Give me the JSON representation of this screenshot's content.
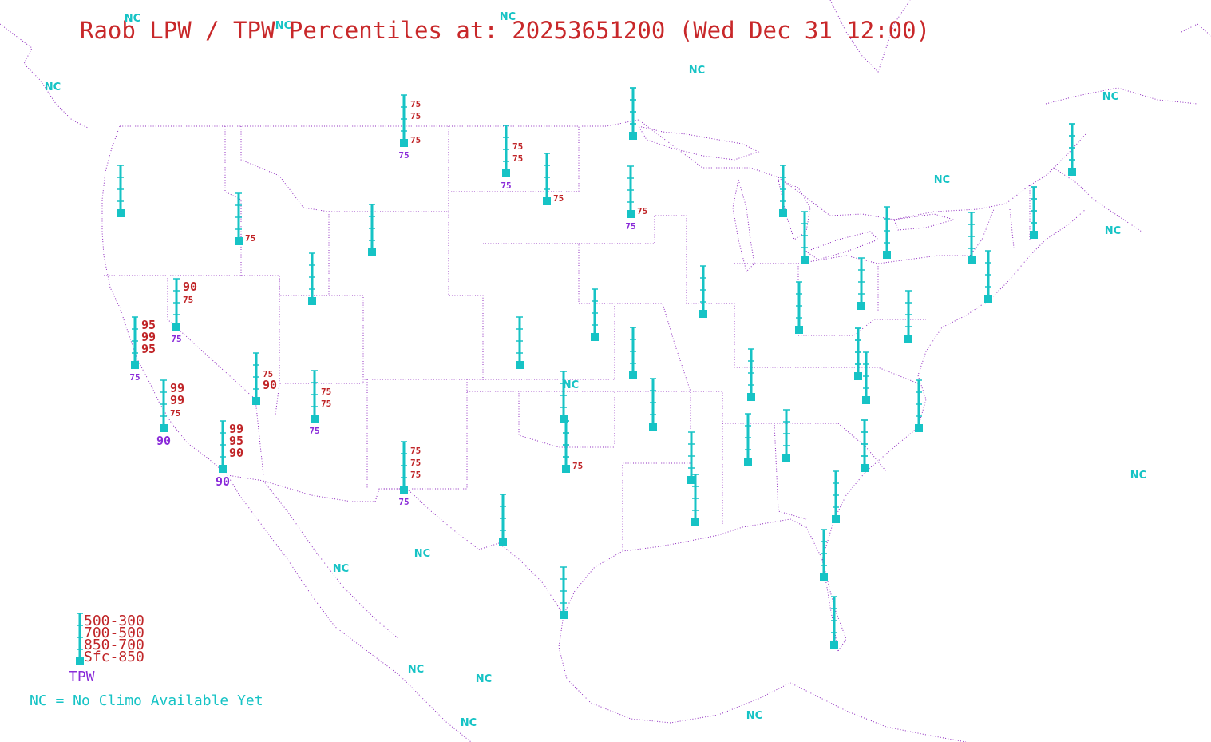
{
  "title": "Raob LPW / TPW Percentiles at: 20253651200 (Wed Dec 31 12:00)",
  "colors": {
    "station": "#16c3c5",
    "layer_label": "#c02528",
    "tpw_label": "#8a2bd9",
    "boundary": "#8f2bbf",
    "title": "#c8282a"
  },
  "legend": {
    "layers": [
      "500-300",
      "700-500",
      "850-700",
      "Sfc-850"
    ],
    "tpw": "TPW",
    "nc_note": "NC = No Climo Available Yet"
  },
  "nc_label": "NC",
  "stations": [
    {
      "labels": [
        "",
        "",
        "",
        ""
      ],
      "tpw": ""
    },
    {
      "labels": [
        "",
        "",
        "",
        "75"
      ],
      "tpw": ""
    },
    {
      "labels": [
        "75",
        "75",
        "",
        "75"
      ],
      "tpw": "75"
    },
    {
      "labels": [
        "",
        "75",
        "75",
        ""
      ],
      "tpw": "75"
    },
    {
      "labels": [
        "",
        "",
        "",
        "75"
      ],
      "tpw": ""
    },
    {
      "labels": [
        "",
        "",
        "",
        ""
      ],
      "tpw": ""
    },
    {
      "labels": [
        "",
        "",
        "",
        "75"
      ],
      "tpw": "75"
    },
    {
      "labels": [
        "",
        "",
        "",
        ""
      ],
      "tpw": ""
    },
    {
      "labels": [
        "",
        "",
        "",
        ""
      ],
      "tpw": ""
    },
    {
      "labels": [
        "",
        "",
        "",
        ""
      ],
      "tpw": ""
    },
    {
      "labels": [
        "",
        "",
        "",
        ""
      ],
      "tpw": ""
    },
    {
      "labels": [
        "",
        "",
        "",
        ""
      ],
      "tpw": ""
    },
    {
      "labels": [
        "",
        "",
        "",
        ""
      ],
      "tpw": ""
    },
    {
      "labels": [
        "",
        "",
        "",
        ""
      ],
      "tpw": ""
    },
    {
      "labels": [
        "",
        "",
        "",
        ""
      ],
      "tpw": ""
    },
    {
      "labels": [
        "",
        "",
        "",
        ""
      ],
      "tpw": ""
    },
    {
      "labels": [
        "90",
        "75",
        "",
        ""
      ],
      "tpw": "75"
    },
    {
      "labels": [
        "95",
        "99",
        "95",
        ""
      ],
      "tpw": "75"
    },
    {
      "labels": [
        "",
        "75",
        "90",
        ""
      ],
      "tpw": ""
    },
    {
      "labels": [
        "",
        "75",
        "75",
        ""
      ],
      "tpw": "75"
    },
    {
      "labels": [
        "99",
        "99",
        "75",
        ""
      ],
      "tpw": "90"
    },
    {
      "labels": [
        "99",
        "95",
        "90",
        ""
      ],
      "tpw": "90"
    },
    {
      "labels": [
        "",
        "",
        "",
        ""
      ],
      "tpw": ""
    },
    {
      "labels": [
        "",
        "",
        "",
        ""
      ],
      "tpw": ""
    },
    {
      "labels": [
        "",
        "",
        "",
        ""
      ],
      "tpw": ""
    },
    {
      "labels": [
        "",
        "",
        "",
        ""
      ],
      "tpw": ""
    },
    {
      "labels": [
        "",
        "",
        "",
        ""
      ],
      "tpw": ""
    },
    {
      "labels": [
        "",
        "",
        "",
        ""
      ],
      "tpw": ""
    },
    {
      "labels": [
        "",
        "",
        "",
        ""
      ],
      "tpw": ""
    },
    {
      "labels": [
        "",
        "",
        "",
        ""
      ],
      "tpw": ""
    },
    {
      "labels": [
        "",
        "",
        "",
        "75"
      ],
      "tpw": ""
    },
    {
      "labels": [
        "",
        "",
        "",
        ""
      ],
      "tpw": ""
    },
    {
      "labels": [
        "",
        "",
        "",
        ""
      ],
      "tpw": ""
    },
    {
      "labels": [
        "",
        "",
        "",
        ""
      ],
      "tpw": ""
    },
    {
      "labels": [
        "",
        "",
        "",
        ""
      ],
      "tpw": ""
    },
    {
      "labels": [
        "",
        "",
        "",
        ""
      ],
      "tpw": ""
    },
    {
      "labels": [
        "",
        "",
        "",
        ""
      ],
      "tpw": ""
    },
    {
      "labels": [
        "",
        "",
        "",
        ""
      ],
      "tpw": ""
    },
    {
      "labels": [
        "",
        "",
        "",
        ""
      ],
      "tpw": ""
    },
    {
      "labels": [
        "75",
        "75",
        "75",
        ""
      ],
      "tpw": "75"
    },
    {
      "labels": [
        "",
        "",
        "",
        ""
      ],
      "tpw": ""
    },
    {
      "labels": [
        "",
        "",
        "",
        ""
      ],
      "tpw": ""
    },
    {
      "labels": [
        "",
        "",
        "",
        ""
      ],
      "tpw": ""
    },
    {
      "labels": [
        "",
        "",
        "",
        ""
      ],
      "tpw": ""
    },
    {
      "labels": [
        "",
        "",
        "",
        ""
      ],
      "tpw": ""
    },
    {
      "labels": [
        "",
        "",
        "",
        ""
      ],
      "tpw": ""
    },
    {
      "labels": [
        "",
        "",
        "",
        ""
      ],
      "tpw": ""
    },
    {
      "labels": [
        "",
        "",
        "",
        ""
      ],
      "tpw": ""
    },
    {
      "labels": [
        "",
        "",
        "",
        ""
      ],
      "tpw": ""
    },
    {
      "labels": [
        "",
        "",
        "",
        ""
      ],
      "tpw": ""
    },
    {
      "labels": [
        "",
        "",
        "",
        ""
      ],
      "tpw": ""
    },
    {
      "labels": [
        "",
        "",
        "",
        ""
      ],
      "tpw": ""
    },
    {
      "labels": [
        "",
        "",
        "",
        ""
      ],
      "tpw": ""
    }
  ]
}
